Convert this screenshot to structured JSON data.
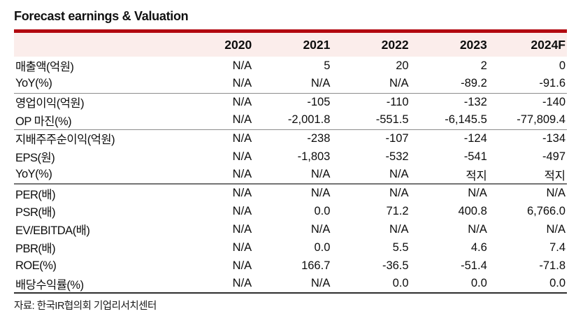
{
  "title": "Forecast earnings & Valuation",
  "source": "자료: 한국IR협의회 기업리서치센터",
  "colors": {
    "accent_red": "#b20910",
    "header_bg": "#fbedeb",
    "section_divider_gray": "#8c8c8c",
    "bottom_rule_dark": "#2e2e2e",
    "text": "#0d0d0d"
  },
  "chart_data": {
    "type": "table",
    "title": "Forecast earnings & Valuation",
    "columns": [
      "2020",
      "2021",
      "2022",
      "2023",
      "2024F"
    ],
    "rows": [
      {
        "label": "매출액(억원)",
        "values": [
          "N/A",
          "5",
          "20",
          "2",
          "0"
        ]
      },
      {
        "label": "YoY(%)",
        "values": [
          "N/A",
          "N/A",
          "N/A",
          "-89.2",
          "-91.6"
        ]
      },
      {
        "label": "영업이익(억원)",
        "values": [
          "N/A",
          "-105",
          "-110",
          "-132",
          "-140"
        ]
      },
      {
        "label": "OP 마진(%)",
        "values": [
          "N/A",
          "-2,001.8",
          "-551.5",
          "-6,145.5",
          "-77,809.4"
        ]
      },
      {
        "label": "지배주주순이익(억원)",
        "values": [
          "N/A",
          "-238",
          "-107",
          "-124",
          "-134"
        ]
      },
      {
        "label": "EPS(원)",
        "values": [
          "N/A",
          "-1,803",
          "-532",
          "-541",
          "-497"
        ]
      },
      {
        "label": "YoY(%)",
        "values": [
          "N/A",
          "N/A",
          "N/A",
          "적지",
          "적지"
        ]
      },
      {
        "label": "PER(배)",
        "values": [
          "N/A",
          "N/A",
          "N/A",
          "N/A",
          "N/A"
        ]
      },
      {
        "label": "PSR(배)",
        "values": [
          "N/A",
          "0.0",
          "71.2",
          "400.8",
          "6,766.0"
        ]
      },
      {
        "label": "EV/EBITDA(배)",
        "values": [
          "N/A",
          "N/A",
          "N/A",
          "N/A",
          "N/A"
        ]
      },
      {
        "label": "PBR(배)",
        "values": [
          "N/A",
          "0.0",
          "5.5",
          "4.6",
          "7.4"
        ]
      },
      {
        "label": "ROE(%)",
        "values": [
          "N/A",
          "166.7",
          "-36.5",
          "-51.4",
          "-71.8"
        ]
      },
      {
        "label": "배당수익률(%)",
        "values": [
          "N/A",
          "N/A",
          "0.0",
          "0.0",
          "0.0"
        ]
      }
    ]
  }
}
